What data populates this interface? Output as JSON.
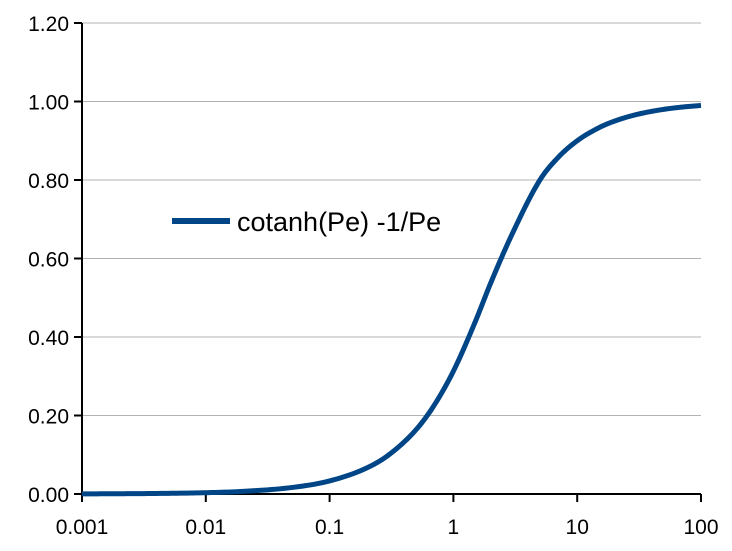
{
  "chart_data": {
    "type": "line",
    "title": "",
    "xlabel": "",
    "ylabel": "",
    "x_scale": "log",
    "xlim": [
      0.001,
      100
    ],
    "ylim": [
      0,
      1.2
    ],
    "grid": {
      "horizontal": true,
      "vertical": false
    },
    "legend_position": "center-left",
    "x_tick_labels": [
      "0.001",
      "0.01",
      "0.1",
      "1",
      "10",
      "100"
    ],
    "y_tick_labels": [
      "0.00",
      "0.20",
      "0.40",
      "0.60",
      "0.80",
      "1.00",
      "1.20"
    ],
    "series": [
      {
        "name": "cotanh(Pe) -1/Pe",
        "color": "#004586",
        "x": [
          0.001,
          0.002,
          0.005,
          0.01,
          0.02,
          0.05,
          0.1,
          0.2,
          0.3,
          0.5,
          0.7,
          1,
          1.5,
          2,
          3,
          5,
          7,
          10,
          15,
          20,
          30,
          50,
          70,
          100
        ],
        "y": [
          0.0003,
          0.0007,
          0.0017,
          0.0033,
          0.0067,
          0.0167,
          0.0333,
          0.0665,
          0.0995,
          0.164,
          0.2263,
          0.313,
          0.4386,
          0.5373,
          0.6641,
          0.8001,
          0.8572,
          0.9,
          0.9333,
          0.95,
          0.9667,
          0.98,
          0.9857,
          0.99
        ]
      }
    ]
  }
}
